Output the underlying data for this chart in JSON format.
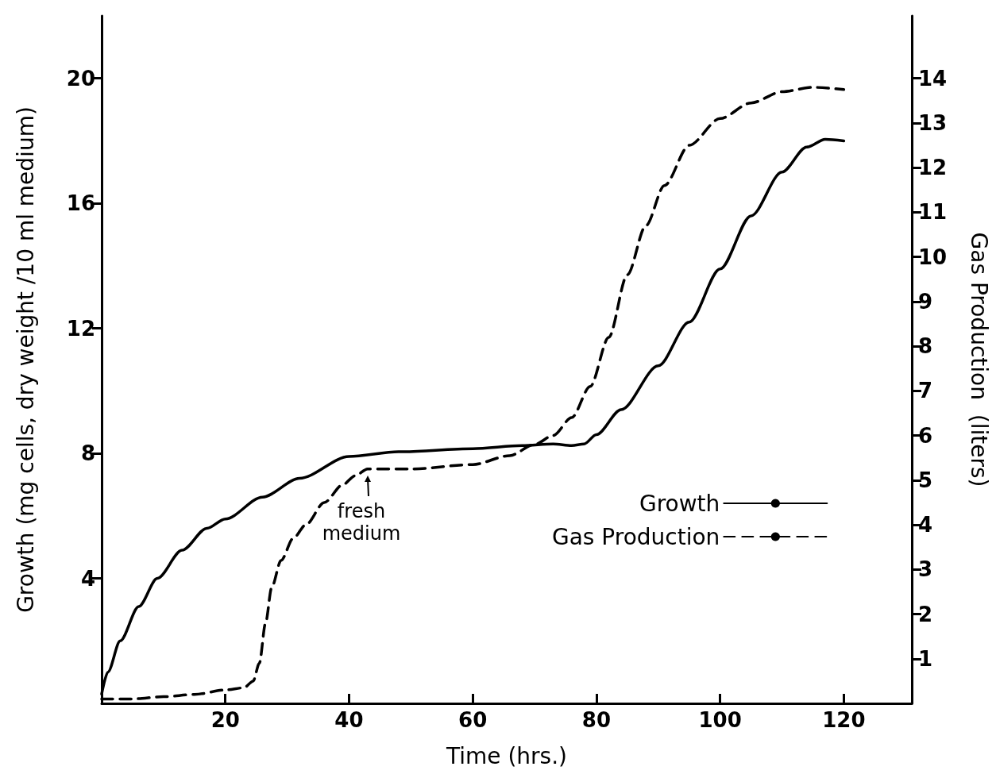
{
  "chart_data": {
    "type": "line",
    "xlabel": "Time (hrs.)",
    "ylabel": "Growth (mg cells, dry weight /10 ml medium)",
    "y2label": "Gas Production  (liters)",
    "xlim": [
      0,
      131
    ],
    "xticks": [
      20,
      40,
      60,
      80,
      100,
      120
    ],
    "ylim": [
      0,
      22
    ],
    "yticks": [
      4,
      8,
      12,
      16,
      20
    ],
    "y2lim": [
      0,
      15.4
    ],
    "y2ticks": [
      1,
      2,
      3,
      4,
      5,
      6,
      7,
      8,
      9,
      10,
      11,
      12,
      13,
      14
    ],
    "grid": false,
    "legend": "right",
    "marker": "none",
    "annotations": [
      "fresh medium"
    ],
    "series": [
      {
        "name": "Growth",
        "color": "#000000",
        "line_style": "solid",
        "x": [
          0,
          1,
          3,
          6,
          9,
          13,
          17,
          20,
          26,
          32,
          40,
          48,
          60,
          68,
          73,
          76,
          78,
          80,
          84,
          90,
          95,
          100,
          105,
          110,
          114,
          117,
          120
        ],
        "values": [
          0.3,
          1.0,
          2.0,
          3.1,
          4.0,
          4.9,
          5.6,
          5.9,
          6.6,
          7.2,
          7.9,
          8.05,
          8.15,
          8.25,
          8.3,
          8.25,
          8.3,
          8.6,
          9.4,
          10.8,
          12.2,
          13.9,
          15.6,
          17.0,
          17.8,
          18.05,
          18.0
        ]
      },
      {
        "name": "Gas Production",
        "color": "#000000",
        "line_style": "dashed",
        "axis": "y2",
        "x": [
          0,
          5,
          10,
          15,
          20,
          23,
          24.5,
          25.5,
          26.5,
          27.5,
          29,
          31,
          33,
          36,
          39,
          41,
          43,
          50,
          60,
          66,
          70,
          73,
          76,
          79,
          82,
          85,
          88,
          91,
          95,
          100,
          105,
          110,
          115,
          120
        ],
        "values": [
          0.1,
          0.1,
          0.15,
          0.2,
          0.3,
          0.35,
          0.5,
          0.9,
          1.8,
          2.6,
          3.2,
          3.7,
          4.0,
          4.5,
          4.9,
          5.1,
          5.25,
          5.25,
          5.35,
          5.55,
          5.8,
          6.0,
          6.4,
          7.1,
          8.2,
          9.6,
          10.7,
          11.6,
          12.5,
          13.1,
          13.45,
          13.7,
          13.8,
          13.75
        ]
      }
    ]
  }
}
